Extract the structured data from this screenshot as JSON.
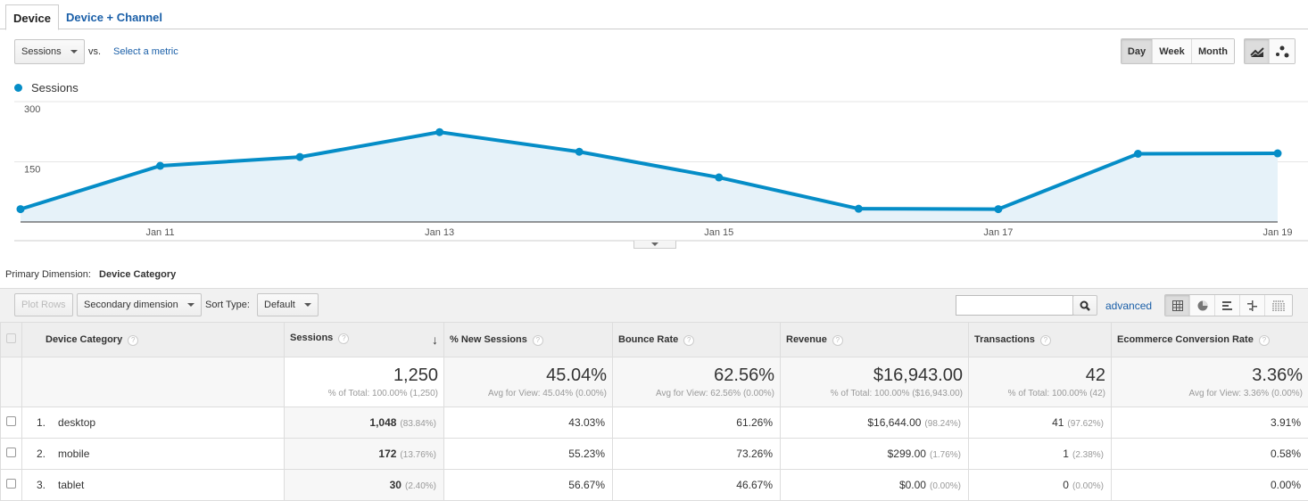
{
  "tabs": [
    "Device",
    "Device + Channel"
  ],
  "controls": {
    "metric": "Sessions",
    "vs": "vs.",
    "select_metric": "Select a metric",
    "periods": [
      "Day",
      "Week",
      "Month"
    ],
    "active_period": "Day"
  },
  "chart_data": {
    "type": "area",
    "legend": "Sessions",
    "color": "#058dc7",
    "x": [
      "Jan 10",
      "Jan 11",
      "Jan 12",
      "Jan 13",
      "Jan 14",
      "Jan 15",
      "Jan 16",
      "Jan 17",
      "Jan 18",
      "Jan 19"
    ],
    "values": [
      32,
      140,
      162,
      224,
      175,
      111,
      33,
      32,
      170,
      171
    ],
    "xticks": [
      "Jan 11",
      "Jan 13",
      "Jan 15",
      "Jan 17",
      "Jan 19"
    ],
    "yticks": [
      "300",
      "150"
    ],
    "ylim": [
      0,
      300
    ]
  },
  "primary": {
    "label": "Primary Dimension:",
    "value": "Device Category"
  },
  "toolbar": {
    "plot_rows": "Plot Rows",
    "secondary": "Secondary dimension",
    "sort_label": "Sort Type:",
    "sort": "Default",
    "advanced": "advanced"
  },
  "columns": [
    "Device Category",
    "Sessions",
    "% New Sessions",
    "Bounce Rate",
    "Revenue",
    "Transactions",
    "Ecommerce Conversion Rate"
  ],
  "totals": [
    {
      "v": "1,250",
      "s": "% of Total: 100.00% (1,250)"
    },
    {
      "v": "45.04%",
      "s": "Avg for View: 45.04% (0.00%)"
    },
    {
      "v": "62.56%",
      "s": "Avg for View: 62.56% (0.00%)"
    },
    {
      "v": "$16,943.00",
      "s": "% of Total: 100.00% ($16,943.00)"
    },
    {
      "v": "42",
      "s": "% of Total: 100.00% (42)"
    },
    {
      "v": "3.36%",
      "s": "Avg for View: 3.36% (0.00%)"
    }
  ],
  "rows": [
    {
      "n": "1.",
      "name": "desktop",
      "sessions": "1,048",
      "sp": "(83.84%)",
      "new": "43.03%",
      "bounce": "61.26%",
      "rev": "$16,644.00",
      "rp": "(98.24%)",
      "tr": "41",
      "tp": "(97.62%)",
      "ecr": "3.91%"
    },
    {
      "n": "2.",
      "name": "mobile",
      "sessions": "172",
      "sp": "(13.76%)",
      "new": "55.23%",
      "bounce": "73.26%",
      "rev": "$299.00",
      "rp": "(1.76%)",
      "tr": "1",
      "tp": "(2.38%)",
      "ecr": "0.58%"
    },
    {
      "n": "3.",
      "name": "tablet",
      "sessions": "30",
      "sp": "(2.40%)",
      "new": "56.67%",
      "bounce": "46.67%",
      "rev": "$0.00",
      "rp": "(0.00%)",
      "tr": "0",
      "tp": "(0.00%)",
      "ecr": "0.00%"
    }
  ]
}
